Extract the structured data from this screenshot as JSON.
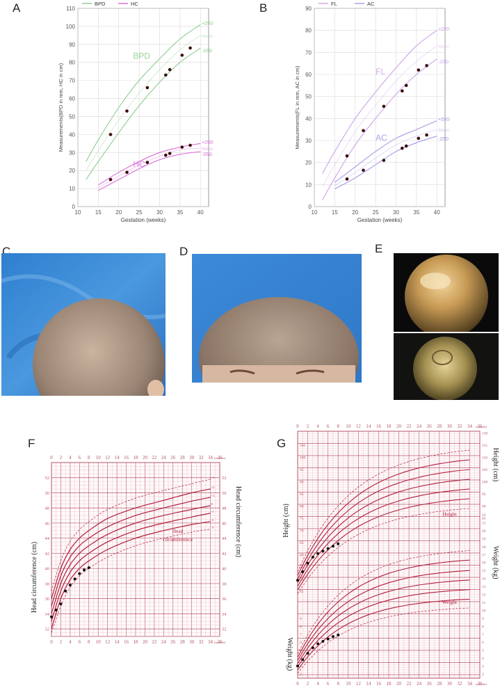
{
  "panels": {
    "a": "A",
    "b": "B",
    "c": "C",
    "d": "D",
    "e": "E",
    "f": "F",
    "g": "G"
  },
  "colors": {
    "bpd": "#7fc87f",
    "hc": "#d65bd6",
    "fl": "#c89ae8",
    "ac": "#9b8ee6",
    "point": "#3b0a0a",
    "growth_grid_major": "#b5566a",
    "growth_grid_minor": "#e7b9c2",
    "growth_curve": "#b01e3c",
    "drape_blue": "#3f8fd8",
    "endoscope_bg": "#0b0b0b"
  },
  "chart_data": [
    {
      "id": "A",
      "type": "line",
      "ylabel": "Measurements(BPD in mm, HC in cm)",
      "xlabel": "Gestation (weeks)",
      "xlim": [
        10,
        42
      ],
      "ylim": [
        0,
        110
      ],
      "xticks": [
        "10",
        "15",
        "20",
        "25",
        "30",
        "35",
        "40"
      ],
      "yticks": [
        "0",
        "10",
        "20",
        "30",
        "40",
        "50",
        "60",
        "70",
        "80",
        "90",
        "100",
        "110"
      ],
      "legend": [
        "BPD",
        "HC"
      ],
      "curve_labels": {
        "bpd": "BPD",
        "hc": "HC"
      },
      "sd_labels": [
        "+2SD",
        "Mean",
        "-2SD"
      ],
      "reference": {
        "BPD_plus": [
          [
            12,
            25
          ],
          [
            15,
            37
          ],
          [
            20,
            55
          ],
          [
            25,
            70
          ],
          [
            30,
            82
          ],
          [
            35,
            93
          ],
          [
            40,
            101
          ]
        ],
        "BPD_mean": [
          [
            12,
            20
          ],
          [
            15,
            31
          ],
          [
            20,
            48
          ],
          [
            25,
            63
          ],
          [
            30,
            76
          ],
          [
            35,
            87
          ],
          [
            40,
            95
          ]
        ],
        "BPD_minus": [
          [
            12,
            15
          ],
          [
            15,
            25
          ],
          [
            20,
            41
          ],
          [
            25,
            56
          ],
          [
            30,
            69
          ],
          [
            35,
            80
          ],
          [
            40,
            88
          ]
        ],
        "HC_plus": [
          [
            15,
            12
          ],
          [
            20,
            19
          ],
          [
            25,
            25
          ],
          [
            30,
            30
          ],
          [
            35,
            33
          ],
          [
            40,
            35
          ]
        ],
        "HC_mean": [
          [
            15,
            10.5
          ],
          [
            20,
            17
          ],
          [
            25,
            23
          ],
          [
            30,
            28
          ],
          [
            35,
            31.5
          ],
          [
            40,
            32.5
          ]
        ],
        "HC_minus": [
          [
            15,
            9
          ],
          [
            20,
            15
          ],
          [
            25,
            21
          ],
          [
            30,
            26
          ],
          [
            35,
            29
          ],
          [
            40,
            30.5
          ]
        ]
      },
      "series": [
        {
          "name": "BPD",
          "points": [
            [
              18,
              40
            ],
            [
              22,
              53
            ],
            [
              27,
              66
            ],
            [
              31.5,
              73
            ],
            [
              32.5,
              76
            ],
            [
              35.5,
              84
            ],
            [
              37.5,
              88
            ]
          ]
        },
        {
          "name": "HC",
          "points": [
            [
              18,
              15
            ],
            [
              22,
              19
            ],
            [
              27,
              24.5
            ],
            [
              31.5,
              28.5
            ],
            [
              32.5,
              29.5
            ],
            [
              35.5,
              33
            ],
            [
              37.5,
              34
            ]
          ]
        }
      ]
    },
    {
      "id": "B",
      "type": "line",
      "ylabel": "Measurements(FL in mm, AC in cm)",
      "xlabel": "Gestation (weeks)",
      "xlim": [
        10,
        42
      ],
      "ylim": [
        0,
        90
      ],
      "xticks": [
        "10",
        "15",
        "20",
        "25",
        "30",
        "35",
        "40"
      ],
      "yticks": [
        "0",
        "10",
        "20",
        "30",
        "40",
        "50",
        "60",
        "70",
        "80",
        "90"
      ],
      "legend": [
        "FL",
        "AC"
      ],
      "curve_labels": {
        "fl": "FL",
        "ac": "AC"
      },
      "sd_labels": [
        "+2SD",
        "Mean",
        "-2SD"
      ],
      "reference": {
        "FL_plus": [
          [
            12,
            15
          ],
          [
            15,
            25
          ],
          [
            20,
            40
          ],
          [
            25,
            52
          ],
          [
            30,
            63
          ],
          [
            35,
            73
          ],
          [
            40,
            80
          ]
        ],
        "FL_mean": [
          [
            12,
            9
          ],
          [
            15,
            19
          ],
          [
            20,
            34
          ],
          [
            25,
            46
          ],
          [
            30,
            57
          ],
          [
            35,
            66
          ],
          [
            40,
            73
          ]
        ],
        "FL_minus": [
          [
            12,
            3
          ],
          [
            15,
            13
          ],
          [
            20,
            28
          ],
          [
            25,
            40
          ],
          [
            30,
            51
          ],
          [
            35,
            60
          ],
          [
            40,
            67
          ]
        ],
        "AC_plus": [
          [
            15,
            11
          ],
          [
            20,
            18
          ],
          [
            25,
            25
          ],
          [
            30,
            31
          ],
          [
            35,
            35
          ],
          [
            40,
            39
          ]
        ],
        "AC_mean": [
          [
            15,
            9.5
          ],
          [
            20,
            15.5
          ],
          [
            25,
            22
          ],
          [
            30,
            28
          ],
          [
            35,
            32
          ],
          [
            40,
            35
          ]
        ],
        "AC_minus": [
          [
            15,
            8
          ],
          [
            20,
            13
          ],
          [
            25,
            19
          ],
          [
            30,
            25
          ],
          [
            35,
            29
          ],
          [
            40,
            32
          ]
        ]
      },
      "series": [
        {
          "name": "FL",
          "points": [
            [
              18,
              23
            ],
            [
              22,
              34.5
            ],
            [
              27,
              45.5
            ],
            [
              31.5,
              52.5
            ],
            [
              32.5,
              55
            ],
            [
              35.5,
              62
            ],
            [
              37.5,
              64
            ]
          ]
        },
        {
          "name": "AC",
          "points": [
            [
              18,
              12.5
            ],
            [
              22,
              16.5
            ],
            [
              27,
              21
            ],
            [
              31.5,
              26.5
            ],
            [
              32.5,
              27.5
            ],
            [
              35.5,
              31
            ],
            [
              37.5,
              32.5
            ]
          ]
        }
      ]
    },
    {
      "id": "F",
      "type": "line",
      "ylabel_left": "Head circumference (cm)",
      "ylabel_right": "Head circumference (cm)",
      "inner_label": "Head circumference",
      "xlim": [
        0,
        36
      ],
      "ylim": [
        31,
        54
      ],
      "xunit": "(months)",
      "xticks": [
        "0",
        "2",
        "4",
        "6",
        "8",
        "10",
        "12",
        "14",
        "16",
        "18",
        "20",
        "22",
        "24",
        "26",
        "28",
        "30",
        "32",
        "34",
        "36"
      ],
      "yticks": [
        "32",
        "34",
        "36",
        "38",
        "40",
        "42",
        "44",
        "46",
        "48",
        "50",
        "52"
      ],
      "sd_curve_labels": [
        "+3",
        "+2",
        "+1",
        "0",
        "-1",
        "-2",
        "-3"
      ],
      "reference_sd": {
        "minus3": [
          [
            0,
            31.5
          ],
          [
            2,
            35
          ],
          [
            4,
            37.5
          ],
          [
            6,
            39
          ],
          [
            8,
            40
          ],
          [
            12,
            41.5
          ],
          [
            18,
            43
          ],
          [
            24,
            44
          ],
          [
            30,
            44.8
          ],
          [
            34,
            45.2
          ]
        ],
        "minus2": [
          [
            0,
            32
          ],
          [
            2,
            36
          ],
          [
            4,
            38.5
          ],
          [
            6,
            40
          ],
          [
            8,
            41
          ],
          [
            12,
            42.5
          ],
          [
            18,
            44
          ],
          [
            24,
            45
          ],
          [
            30,
            45.8
          ],
          [
            34,
            46.2
          ]
        ],
        "minus1": [
          [
            0,
            33
          ],
          [
            2,
            37
          ],
          [
            4,
            39.5
          ],
          [
            6,
            41
          ],
          [
            8,
            42
          ],
          [
            12,
            43.5
          ],
          [
            18,
            45
          ],
          [
            24,
            46
          ],
          [
            30,
            46.8
          ],
          [
            34,
            47.3
          ]
        ],
        "zero": [
          [
            0,
            34
          ],
          [
            2,
            38
          ],
          [
            4,
            40.5
          ],
          [
            6,
            42
          ],
          [
            8,
            43
          ],
          [
            12,
            44.5
          ],
          [
            18,
            46
          ],
          [
            24,
            47
          ],
          [
            30,
            47.8
          ],
          [
            34,
            48.3
          ]
        ],
        "plus1": [
          [
            0,
            35
          ],
          [
            2,
            39
          ],
          [
            4,
            41.5
          ],
          [
            6,
            43
          ],
          [
            8,
            44
          ],
          [
            12,
            45.5
          ],
          [
            18,
            47
          ],
          [
            24,
            48
          ],
          [
            30,
            48.9
          ],
          [
            34,
            49.4
          ]
        ],
        "plus2": [
          [
            0,
            36
          ],
          [
            2,
            40
          ],
          [
            4,
            42.5
          ],
          [
            6,
            44
          ],
          [
            8,
            45
          ],
          [
            12,
            46.6
          ],
          [
            18,
            48
          ],
          [
            24,
            49
          ],
          [
            30,
            50
          ],
          [
            34,
            50.5
          ]
        ],
        "plus3": [
          [
            0,
            37
          ],
          [
            2,
            41
          ],
          [
            4,
            43.6
          ],
          [
            6,
            45.1
          ],
          [
            8,
            46.2
          ],
          [
            12,
            47.8
          ],
          [
            18,
            49.3
          ],
          [
            24,
            50.3
          ],
          [
            30,
            51.2
          ],
          [
            34,
            51.8
          ]
        ]
      },
      "series": [
        {
          "name": "",
          "points": [
            [
              0,
              33.6
            ],
            [
              1,
              34.5
            ],
            [
              2,
              35.3
            ],
            [
              3,
              37
            ],
            [
              4,
              37.8
            ],
            [
              5,
              38.6
            ],
            [
              6,
              39.3
            ],
            [
              7,
              39.8
            ],
            [
              8,
              40.1
            ]
          ]
        }
      ]
    },
    {
      "id": "G",
      "type": "line",
      "ylabel_left_top": "Height (cm)",
      "ylabel_right_top": "Height (cm)",
      "ylabel_left_bottom": "Weight (kg)",
      "ylabel_right_bottom": "Weight (kg)",
      "inner_label_height": "Height",
      "inner_label_weight": "Weight",
      "xlim": [
        0,
        36
      ],
      "xunit": "(months)",
      "xticks": [
        "0",
        "2",
        "4",
        "6",
        "8",
        "10",
        "12",
        "14",
        "16",
        "18",
        "20",
        "22",
        "24",
        "26",
        "28",
        "30",
        "32",
        "34",
        "36"
      ],
      "height_ticks": [
        "45",
        "50",
        "55",
        "60",
        "65",
        "70",
        "75",
        "80",
        "85",
        "90",
        "95",
        "100",
        "105"
      ],
      "height_ticks_right": [
        "85",
        "90",
        "95",
        "100",
        "105",
        "110",
        "115",
        "120"
      ],
      "weight_ticks": [
        "2",
        "3",
        "4",
        "5",
        "6",
        "7",
        "8",
        "9",
        "10",
        "11",
        "12",
        "13",
        "14",
        "15",
        "16",
        "17",
        "18",
        "19",
        "20",
        "21",
        "22"
      ],
      "height_series": [
        {
          "name": "",
          "points": [
            [
              0,
              49.5
            ],
            [
              1,
              53
            ],
            [
              2,
              56.5
            ],
            [
              3,
              59
            ],
            [
              4,
              60.5
            ],
            [
              5,
              61.5
            ],
            [
              6,
              62.5
            ],
            [
              7,
              63.5
            ],
            [
              8,
              64.5
            ]
          ]
        }
      ],
      "weight_series": [
        {
          "name": "",
          "points": [
            [
              0,
              3.0
            ],
            [
              1,
              3.8
            ],
            [
              2,
              4.6
            ],
            [
              3,
              5.3
            ],
            [
              4,
              5.8
            ],
            [
              5,
              6.1
            ],
            [
              6,
              6.4
            ],
            [
              7,
              6.7
            ],
            [
              8,
              6.9
            ]
          ]
        }
      ]
    }
  ]
}
